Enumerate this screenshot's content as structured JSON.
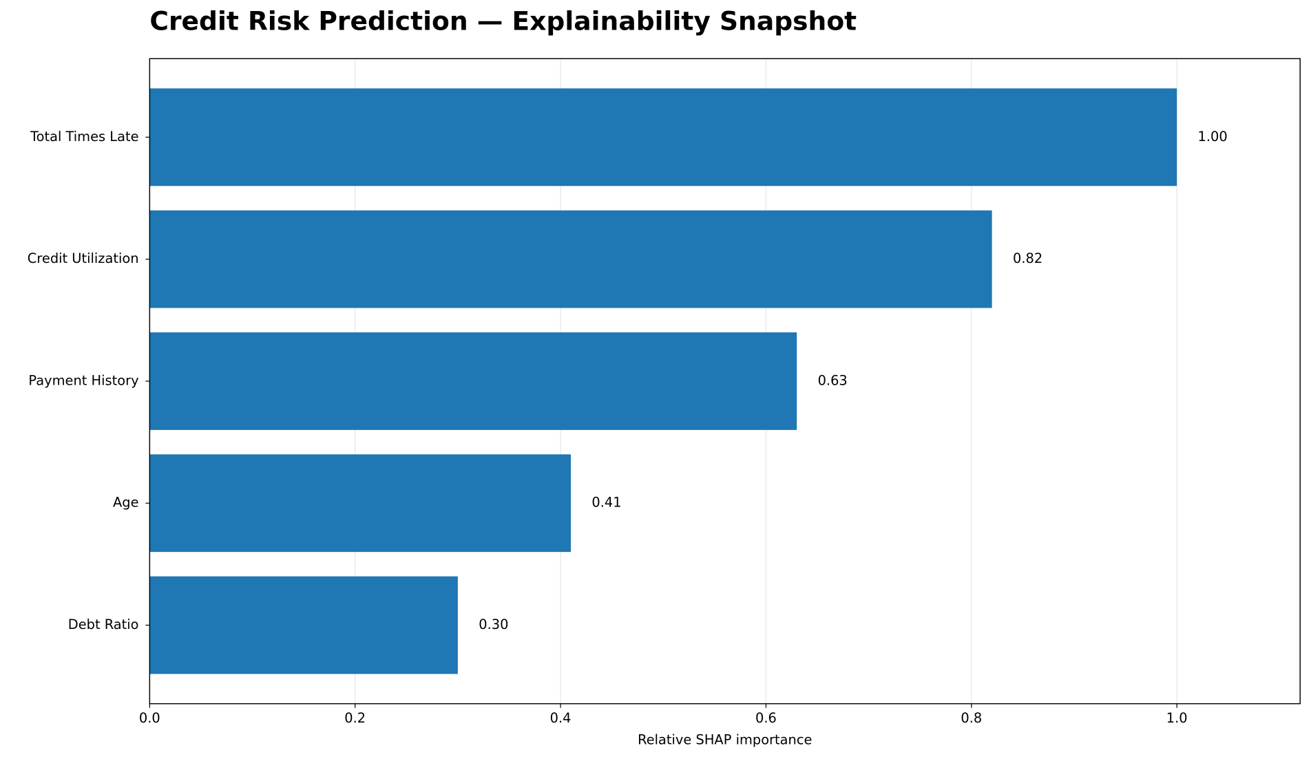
{
  "chart_data": {
    "type": "barh",
    "title": "Credit Risk Prediction — Explainability Snapshot",
    "x_label": "Relative SHAP importance",
    "categories": [
      "Total Times Late",
      "Credit Utilization",
      "Payment History",
      "Age",
      "Debt Ratio"
    ],
    "values": [
      1.0,
      0.82,
      0.63,
      0.41,
      0.3
    ],
    "value_labels": [
      "1.00",
      "0.82",
      "0.63",
      "0.41",
      "0.30"
    ],
    "color": "#1f77b4",
    "xlim": [
      0,
      1.12
    ],
    "xticks": [
      {
        "value": 0,
        "label": "0.0"
      },
      0.2,
      0.4,
      0.6,
      0.8,
      {
        "value": 1,
        "label": "1.0"
      }
    ],
    "grid": true
  }
}
